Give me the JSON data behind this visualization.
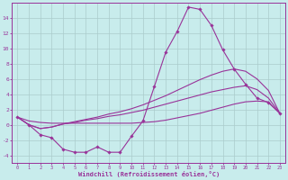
{
  "xlabel": "Windchill (Refroidissement éolien,°C)",
  "x": [
    0,
    1,
    2,
    3,
    4,
    5,
    6,
    7,
    8,
    9,
    10,
    11,
    12,
    13,
    14,
    15,
    16,
    17,
    18,
    19,
    20,
    21,
    22,
    23
  ],
  "line_jagged": [
    1.0,
    0.0,
    -1.3,
    -1.7,
    -3.2,
    -3.6,
    -3.6,
    -2.9,
    -3.6,
    -3.6,
    -1.5,
    0.5,
    5.0,
    9.5,
    12.2,
    15.4,
    15.1,
    13.0,
    9.8,
    7.3,
    5.3,
    3.5,
    2.9,
    1.5
  ],
  "line_smooth_high": [
    1.0,
    0.0,
    -0.5,
    -0.3,
    0.1,
    0.4,
    0.7,
    1.0,
    1.4,
    1.7,
    2.1,
    2.6,
    3.2,
    3.8,
    4.5,
    5.2,
    5.9,
    6.5,
    7.0,
    7.3,
    7.0,
    6.0,
    4.5,
    1.5
  ],
  "line_smooth_mid": [
    1.0,
    0.0,
    -0.5,
    -0.3,
    0.1,
    0.3,
    0.6,
    0.8,
    1.1,
    1.3,
    1.6,
    1.9,
    2.3,
    2.7,
    3.1,
    3.5,
    3.9,
    4.3,
    4.6,
    4.9,
    5.1,
    4.6,
    3.5,
    1.5
  ],
  "line_flat": [
    1.0,
    0.5,
    0.3,
    0.2,
    0.2,
    0.2,
    0.2,
    0.2,
    0.2,
    0.2,
    0.2,
    0.3,
    0.4,
    0.6,
    0.9,
    1.2,
    1.5,
    1.9,
    2.3,
    2.7,
    3.0,
    3.1,
    3.0,
    1.5
  ],
  "line_color": "#993399",
  "bg_color": "#C8ECEC",
  "grid_color": "#AACCCC",
  "ylim": [
    -5,
    16
  ],
  "yticks": [
    -4,
    -2,
    0,
    2,
    4,
    6,
    8,
    10,
    12,
    14
  ],
  "xticks": [
    0,
    1,
    2,
    3,
    4,
    5,
    6,
    7,
    8,
    9,
    10,
    11,
    12,
    13,
    14,
    15,
    16,
    17,
    18,
    19,
    20,
    21,
    22,
    23
  ]
}
